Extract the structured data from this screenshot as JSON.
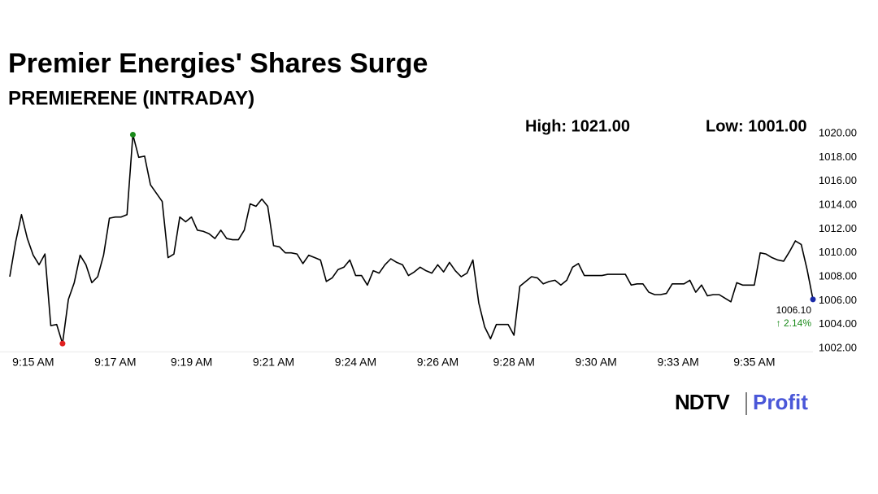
{
  "chart_data": {
    "type": "line",
    "title": "Premier Energies' Shares Surge",
    "subtitle": "PREMIERENE (INTRADAY)",
    "high_text": "High: 1021.00",
    "low_text": "Low: 1001.00",
    "annotations": [
      "1006.10",
      "↑ 2.14%"
    ],
    "branding": [
      "NDTV",
      "Profit"
    ],
    "color": "#000000",
    "high_color": "#1a8a1a",
    "low_color": "#e02020",
    "last_color": "#1a2aa8",
    "categories": [
      null,
      null,
      null,
      null,
      "9:15 AM",
      null,
      null,
      null,
      null,
      null,
      null,
      null,
      null,
      null,
      null,
      null,
      null,
      null,
      "9:17 AM",
      null,
      null,
      null,
      null,
      null,
      null,
      null,
      null,
      null,
      null,
      null,
      null,
      "9:19 AM",
      null,
      null,
      null,
      null,
      null,
      null,
      null,
      null,
      null,
      null,
      null,
      null,
      null,
      "9:21 AM",
      null,
      null,
      null,
      null,
      null,
      null,
      null,
      null,
      null,
      null,
      null,
      null,
      null,
      "9:24 AM",
      null,
      null,
      null,
      null,
      null,
      null,
      null,
      null,
      null,
      null,
      null,
      null,
      null,
      "9:26 AM",
      null,
      null,
      null,
      null,
      null,
      null,
      null,
      null,
      null,
      null,
      null,
      null,
      "9:28 AM",
      null,
      null,
      null,
      null,
      null,
      null,
      null,
      null,
      null,
      null,
      null,
      null,
      null,
      "9:30 AM",
      null,
      null,
      null,
      null,
      null,
      null,
      null,
      null,
      null,
      null,
      null,
      null,
      null,
      "9:33 AM",
      null,
      null,
      null,
      null,
      null,
      null,
      null,
      null,
      null,
      null,
      null,
      null,
      "9:35 AM",
      null,
      null,
      null,
      null,
      null,
      null,
      null,
      null,
      null,
      null
    ],
    "values": [
      1008.0,
      1010.9,
      1013.2,
      1011.2,
      1009.8,
      1009.0,
      1009.9,
      1003.9,
      1004.0,
      1002.4,
      1006.1,
      1007.5,
      1009.8,
      1009.0,
      1007.5,
      1008.0,
      1009.8,
      1012.9,
      1013.0,
      1013.0,
      1013.2,
      1019.9,
      1018.0,
      1018.1,
      1015.7,
      1015.0,
      1014.3,
      1009.6,
      1009.9,
      1013.0,
      1012.6,
      1013.0,
      1011.9,
      1011.8,
      1011.6,
      1011.2,
      1011.9,
      1011.2,
      1011.1,
      1011.1,
      1011.9,
      1014.1,
      1013.9,
      1014.5,
      1013.9,
      1010.6,
      1010.5,
      1010.0,
      1010.0,
      1009.9,
      1009.1,
      1009.8,
      1009.6,
      1009.4,
      1007.6,
      1007.9,
      1008.6,
      1008.8,
      1009.4,
      1008.1,
      1008.1,
      1007.3,
      1008.5,
      1008.3,
      1009.0,
      1009.5,
      1009.2,
      1009.0,
      1008.1,
      1008.4,
      1008.8,
      1008.5,
      1008.3,
      1009.0,
      1008.4,
      1009.2,
      1008.5,
      1008.0,
      1008.3,
      1009.4,
      1005.8,
      1003.8,
      1002.8,
      1004.0,
      1004.0,
      1004.0,
      1003.1,
      1007.2,
      1007.6,
      1008.0,
      1007.9,
      1007.4,
      1007.6,
      1007.7,
      1007.3,
      1007.7,
      1008.8,
      1009.1,
      1008.1,
      1008.1,
      1008.1,
      1008.1,
      1008.2,
      1008.2,
      1008.2,
      1008.2,
      1007.3,
      1007.4,
      1007.4,
      1006.7,
      1006.5,
      1006.5,
      1006.6,
      1007.4,
      1007.4,
      1007.4,
      1007.7,
      1006.7,
      1007.3,
      1006.4,
      1006.5,
      1006.5,
      1006.2,
      1005.9,
      1007.5,
      1007.3,
      1007.3,
      1007.3,
      1010.0,
      1009.9,
      1009.6,
      1009.4,
      1009.3,
      1010.1,
      1011.0,
      1010.7,
      1008.6,
      1006.1
    ],
    "ylim": [
      1001.7,
      1020.3
    ],
    "yticks": [
      {
        "value": 1002,
        "label": "1002.00"
      },
      {
        "value": 1004,
        "label": "1004.00"
      },
      {
        "value": 1006,
        "label": "1006.00"
      },
      {
        "value": 1008,
        "label": "1008.00"
      },
      {
        "value": 1010,
        "label": "1010.00"
      },
      {
        "value": 1012,
        "label": "1012.00"
      },
      {
        "value": 1014,
        "label": "1014.00"
      },
      {
        "value": 1016,
        "label": "1016.00"
      },
      {
        "value": 1018,
        "label": "1018.00"
      },
      {
        "value": 1020,
        "label": "1020.00"
      }
    ],
    "grid": false
  }
}
